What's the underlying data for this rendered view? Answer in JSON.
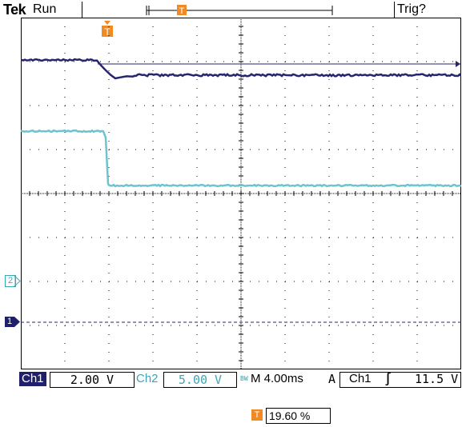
{
  "header": {
    "brand": "Tek",
    "run_state": "Run",
    "trigger_status": "Trig?"
  },
  "channels": {
    "ch1": {
      "marker": "1",
      "color": "#26266e"
    },
    "ch2": {
      "marker": "2",
      "color": "#6cc4cf"
    }
  },
  "status_bar": {
    "ch1_label": "Ch1",
    "ch1_scale": "2.00 V",
    "ch2_label": "Ch2",
    "ch2_scale": "5.00 V",
    "bw_limit": "BW",
    "timebase": "M 4.00ms",
    "trigger_mode": "A",
    "trigger_source": "Ch1",
    "trigger_slope": "∫",
    "trigger_level": "11.5 V"
  },
  "trigger_position": {
    "marker": "T",
    "value": "19.60 %"
  },
  "colors": {
    "ch1_trace": "#26266e",
    "ch2_trace": "#6cc4cf",
    "trigger_marker": "#f08a24",
    "grid": "#000000"
  }
}
